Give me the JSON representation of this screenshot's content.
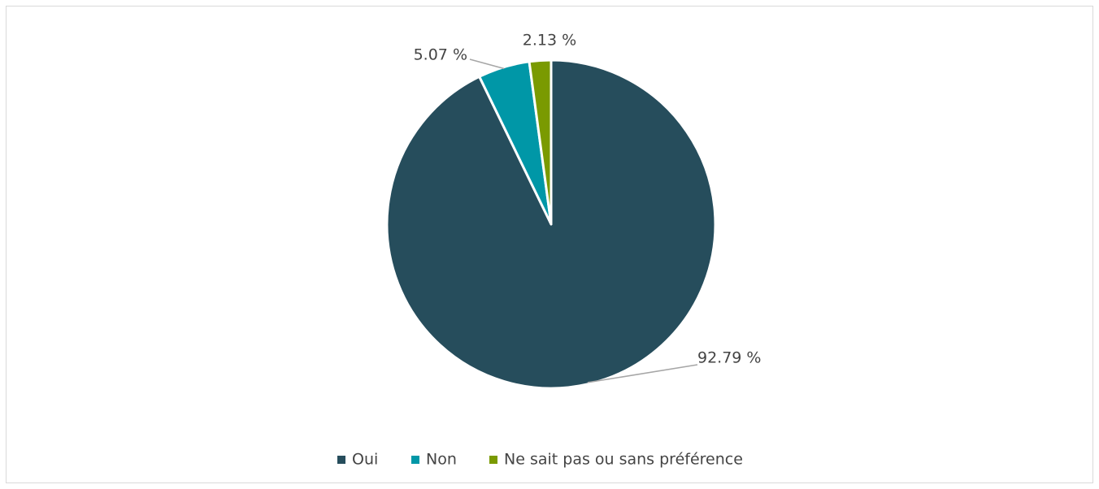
{
  "chart_data": {
    "type": "pie",
    "categories": [
      "Oui",
      "Non",
      "Ne sait pas ou sans préférence"
    ],
    "values": [
      92.79,
      5.07,
      2.13
    ],
    "value_labels": [
      "92.79 %",
      "5.07 %",
      "2.13 %"
    ],
    "colors": [
      "#264d5c",
      "#0097a7",
      "#7a9a01"
    ],
    "legend": "bottom"
  }
}
